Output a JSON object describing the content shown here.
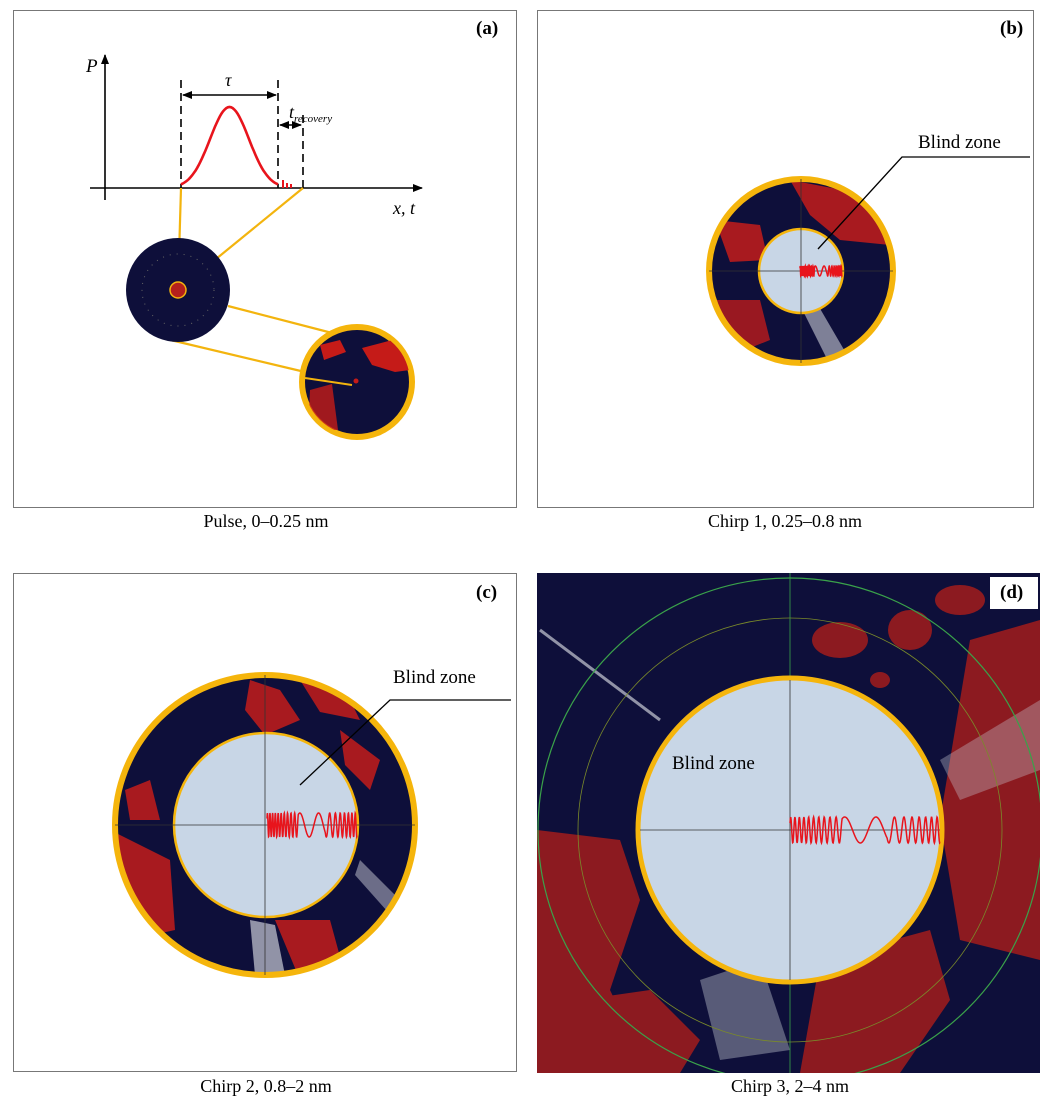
{
  "panels": [
    {
      "label": "(a)",
      "caption": "Pulse, 0–0.25 nm",
      "axis_y": "P",
      "axis_x": "x, t",
      "pulse_width": "τ",
      "recovery_symbol": "t",
      "recovery_subscript": "recovery"
    },
    {
      "label": "(b)",
      "caption": "Chirp 1, 0.25–0.8 nm",
      "annotation": "Blind zone"
    },
    {
      "label": "(c)",
      "caption": "Chirp 2, 0.8–2 nm",
      "annotation": "Blind zone"
    },
    {
      "label": "(d)",
      "caption": "Chirp 3, 2–4 nm",
      "annotation": "Blind zone"
    }
  ]
}
